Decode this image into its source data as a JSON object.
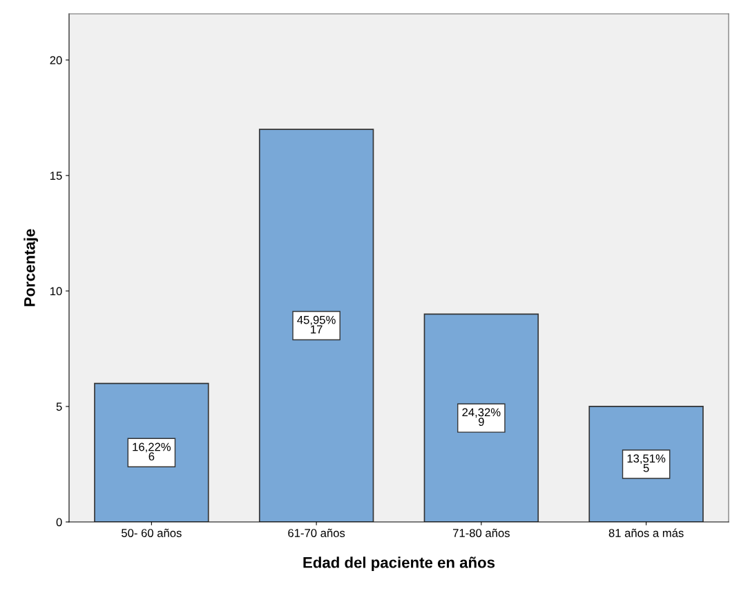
{
  "chart_data": {
    "type": "bar",
    "xlabel": "Edad del paciente en años",
    "ylabel": "Porcentaje",
    "categories": [
      "50- 60 años",
      "61-70 años",
      "71-80 años",
      "81 años a más"
    ],
    "values": [
      6,
      17,
      9,
      5
    ],
    "value_labels": [
      "16,22%\n6",
      "45,95%\n17",
      "24,32%\n9",
      "13,51%\n5"
    ],
    "color": "#79a8d7",
    "ylim": [
      0,
      22
    ],
    "yticks": [
      0,
      5,
      10,
      15,
      20
    ],
    "grid": false
  }
}
